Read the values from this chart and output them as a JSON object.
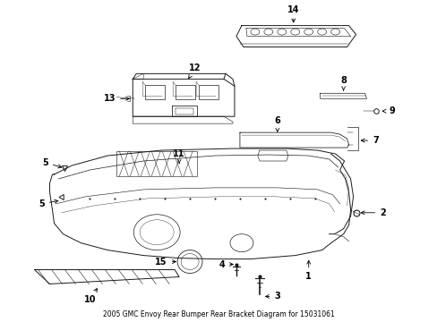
{
  "title": "2005 GMC Envoy Rear Bumper Rear Bracket Diagram for 15031061",
  "bg": "#ffffff",
  "lc": "#1a1a1a",
  "fig_w": 4.89,
  "fig_h": 3.6,
  "dpi": 100
}
